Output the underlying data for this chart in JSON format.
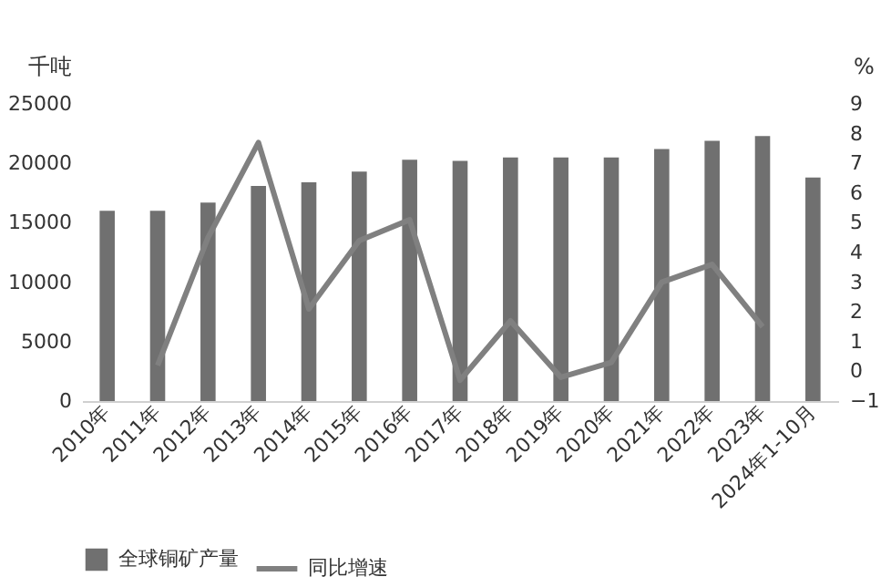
{
  "chart_data": {
    "type": "bar",
    "categories": [
      "2010年",
      "2011年",
      "2012年",
      "2013年",
      "2014年",
      "2015年",
      "2016年",
      "2017年",
      "2018年",
      "2019年",
      "2020年",
      "2021年",
      "2022年",
      "2023年",
      "2024年1-10月"
    ],
    "ylabel": "千吨",
    "y2label": "%",
    "ylim": [
      0,
      25000
    ],
    "yticks": [
      0,
      5000,
      10000,
      15000,
      20000,
      25000
    ],
    "y2lim": [
      -1,
      9
    ],
    "y2ticks": [
      -1,
      0,
      1,
      2,
      3,
      4,
      5,
      6,
      7,
      8,
      9
    ],
    "legend": "bottom",
    "grid": false,
    "series": [
      {
        "name": "全球铜矿产量",
        "color": "#707070",
        "values": [
          16000,
          16000,
          16700,
          18100,
          18400,
          19300,
          20300,
          20200,
          20500,
          20500,
          20500,
          21200,
          21900,
          22300,
          18800
        ]
      },
      {
        "name": "同比增速",
        "type": "line",
        "axis": "y2",
        "color": "#808080",
        "values": [
          null,
          0.2,
          4.5,
          7.7,
          2.1,
          4.4,
          5.1,
          -0.3,
          1.7,
          -0.2,
          0.3,
          3.0,
          3.6,
          1.5,
          null
        ]
      }
    ]
  }
}
